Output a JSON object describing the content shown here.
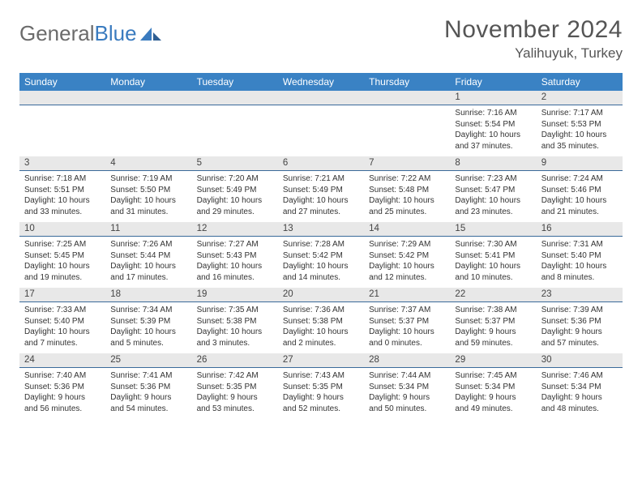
{
  "logo": {
    "text1": "General",
    "text2": "Blue"
  },
  "title": "November 2024",
  "location": "Yalihuyuk, Turkey",
  "colors": {
    "header_bg": "#3a82c4",
    "header_text": "#ffffff",
    "daynum_bg": "#e8e8e8",
    "divider": "#3a6a9a",
    "body_text": "#333333",
    "title_text": "#555555",
    "logo_gray": "#6b6b6b",
    "logo_blue": "#3a7bbf"
  },
  "weekdays": [
    "Sunday",
    "Monday",
    "Tuesday",
    "Wednesday",
    "Thursday",
    "Friday",
    "Saturday"
  ],
  "weeks": [
    {
      "nums": [
        "",
        "",
        "",
        "",
        "",
        "1",
        "2"
      ],
      "cells": [
        {
          "sunrise": "",
          "sunset": "",
          "daylight": ""
        },
        {
          "sunrise": "",
          "sunset": "",
          "daylight": ""
        },
        {
          "sunrise": "",
          "sunset": "",
          "daylight": ""
        },
        {
          "sunrise": "",
          "sunset": "",
          "daylight": ""
        },
        {
          "sunrise": "",
          "sunset": "",
          "daylight": ""
        },
        {
          "sunrise": "Sunrise: 7:16 AM",
          "sunset": "Sunset: 5:54 PM",
          "daylight": "Daylight: 10 hours and 37 minutes."
        },
        {
          "sunrise": "Sunrise: 7:17 AM",
          "sunset": "Sunset: 5:53 PM",
          "daylight": "Daylight: 10 hours and 35 minutes."
        }
      ]
    },
    {
      "nums": [
        "3",
        "4",
        "5",
        "6",
        "7",
        "8",
        "9"
      ],
      "cells": [
        {
          "sunrise": "Sunrise: 7:18 AM",
          "sunset": "Sunset: 5:51 PM",
          "daylight": "Daylight: 10 hours and 33 minutes."
        },
        {
          "sunrise": "Sunrise: 7:19 AM",
          "sunset": "Sunset: 5:50 PM",
          "daylight": "Daylight: 10 hours and 31 minutes."
        },
        {
          "sunrise": "Sunrise: 7:20 AM",
          "sunset": "Sunset: 5:49 PM",
          "daylight": "Daylight: 10 hours and 29 minutes."
        },
        {
          "sunrise": "Sunrise: 7:21 AM",
          "sunset": "Sunset: 5:49 PM",
          "daylight": "Daylight: 10 hours and 27 minutes."
        },
        {
          "sunrise": "Sunrise: 7:22 AM",
          "sunset": "Sunset: 5:48 PM",
          "daylight": "Daylight: 10 hours and 25 minutes."
        },
        {
          "sunrise": "Sunrise: 7:23 AM",
          "sunset": "Sunset: 5:47 PM",
          "daylight": "Daylight: 10 hours and 23 minutes."
        },
        {
          "sunrise": "Sunrise: 7:24 AM",
          "sunset": "Sunset: 5:46 PM",
          "daylight": "Daylight: 10 hours and 21 minutes."
        }
      ]
    },
    {
      "nums": [
        "10",
        "11",
        "12",
        "13",
        "14",
        "15",
        "16"
      ],
      "cells": [
        {
          "sunrise": "Sunrise: 7:25 AM",
          "sunset": "Sunset: 5:45 PM",
          "daylight": "Daylight: 10 hours and 19 minutes."
        },
        {
          "sunrise": "Sunrise: 7:26 AM",
          "sunset": "Sunset: 5:44 PM",
          "daylight": "Daylight: 10 hours and 17 minutes."
        },
        {
          "sunrise": "Sunrise: 7:27 AM",
          "sunset": "Sunset: 5:43 PM",
          "daylight": "Daylight: 10 hours and 16 minutes."
        },
        {
          "sunrise": "Sunrise: 7:28 AM",
          "sunset": "Sunset: 5:42 PM",
          "daylight": "Daylight: 10 hours and 14 minutes."
        },
        {
          "sunrise": "Sunrise: 7:29 AM",
          "sunset": "Sunset: 5:42 PM",
          "daylight": "Daylight: 10 hours and 12 minutes."
        },
        {
          "sunrise": "Sunrise: 7:30 AM",
          "sunset": "Sunset: 5:41 PM",
          "daylight": "Daylight: 10 hours and 10 minutes."
        },
        {
          "sunrise": "Sunrise: 7:31 AM",
          "sunset": "Sunset: 5:40 PM",
          "daylight": "Daylight: 10 hours and 8 minutes."
        }
      ]
    },
    {
      "nums": [
        "17",
        "18",
        "19",
        "20",
        "21",
        "22",
        "23"
      ],
      "cells": [
        {
          "sunrise": "Sunrise: 7:33 AM",
          "sunset": "Sunset: 5:40 PM",
          "daylight": "Daylight: 10 hours and 7 minutes."
        },
        {
          "sunrise": "Sunrise: 7:34 AM",
          "sunset": "Sunset: 5:39 PM",
          "daylight": "Daylight: 10 hours and 5 minutes."
        },
        {
          "sunrise": "Sunrise: 7:35 AM",
          "sunset": "Sunset: 5:38 PM",
          "daylight": "Daylight: 10 hours and 3 minutes."
        },
        {
          "sunrise": "Sunrise: 7:36 AM",
          "sunset": "Sunset: 5:38 PM",
          "daylight": "Daylight: 10 hours and 2 minutes."
        },
        {
          "sunrise": "Sunrise: 7:37 AM",
          "sunset": "Sunset: 5:37 PM",
          "daylight": "Daylight: 10 hours and 0 minutes."
        },
        {
          "sunrise": "Sunrise: 7:38 AM",
          "sunset": "Sunset: 5:37 PM",
          "daylight": "Daylight: 9 hours and 59 minutes."
        },
        {
          "sunrise": "Sunrise: 7:39 AM",
          "sunset": "Sunset: 5:36 PM",
          "daylight": "Daylight: 9 hours and 57 minutes."
        }
      ]
    },
    {
      "nums": [
        "24",
        "25",
        "26",
        "27",
        "28",
        "29",
        "30"
      ],
      "cells": [
        {
          "sunrise": "Sunrise: 7:40 AM",
          "sunset": "Sunset: 5:36 PM",
          "daylight": "Daylight: 9 hours and 56 minutes."
        },
        {
          "sunrise": "Sunrise: 7:41 AM",
          "sunset": "Sunset: 5:36 PM",
          "daylight": "Daylight: 9 hours and 54 minutes."
        },
        {
          "sunrise": "Sunrise: 7:42 AM",
          "sunset": "Sunset: 5:35 PM",
          "daylight": "Daylight: 9 hours and 53 minutes."
        },
        {
          "sunrise": "Sunrise: 7:43 AM",
          "sunset": "Sunset: 5:35 PM",
          "daylight": "Daylight: 9 hours and 52 minutes."
        },
        {
          "sunrise": "Sunrise: 7:44 AM",
          "sunset": "Sunset: 5:34 PM",
          "daylight": "Daylight: 9 hours and 50 minutes."
        },
        {
          "sunrise": "Sunrise: 7:45 AM",
          "sunset": "Sunset: 5:34 PM",
          "daylight": "Daylight: 9 hours and 49 minutes."
        },
        {
          "sunrise": "Sunrise: 7:46 AM",
          "sunset": "Sunset: 5:34 PM",
          "daylight": "Daylight: 9 hours and 48 minutes."
        }
      ]
    }
  ]
}
